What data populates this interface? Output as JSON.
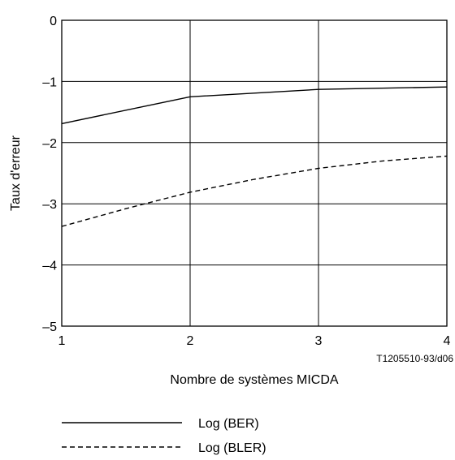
{
  "chart_data": {
    "type": "line",
    "title": "",
    "xlabel": "Nombre de systèmes MICDA",
    "ylabel": "Taux d'erreur",
    "xlim": [
      1,
      4
    ],
    "ylim": [
      -5,
      0
    ],
    "x_ticks": [
      1,
      2,
      3,
      4
    ],
    "y_ticks": [
      0,
      -1,
      -2,
      -3,
      -4,
      -5
    ],
    "x_tick_labels": [
      "1",
      "2",
      "3",
      "4"
    ],
    "y_tick_labels": [
      "0",
      "–1",
      "–2",
      "–3",
      "–4",
      "–5"
    ],
    "grid": true,
    "legend_position": "bottom",
    "reference": "T1205510-93/d06",
    "series": [
      {
        "name": "Log (BER)",
        "style": "solid",
        "color": "#000000",
        "x": [
          1,
          2,
          3,
          4
        ],
        "y": [
          -1.69,
          -1.25,
          -1.13,
          -1.09
        ]
      },
      {
        "name": "Log (BLER)",
        "style": "dashed",
        "color": "#000000",
        "x": [
          1,
          1.5,
          2,
          2.5,
          3,
          3.5,
          4
        ],
        "y": [
          -3.37,
          -3.08,
          -2.81,
          -2.6,
          -2.42,
          -2.3,
          -2.22
        ]
      }
    ]
  }
}
